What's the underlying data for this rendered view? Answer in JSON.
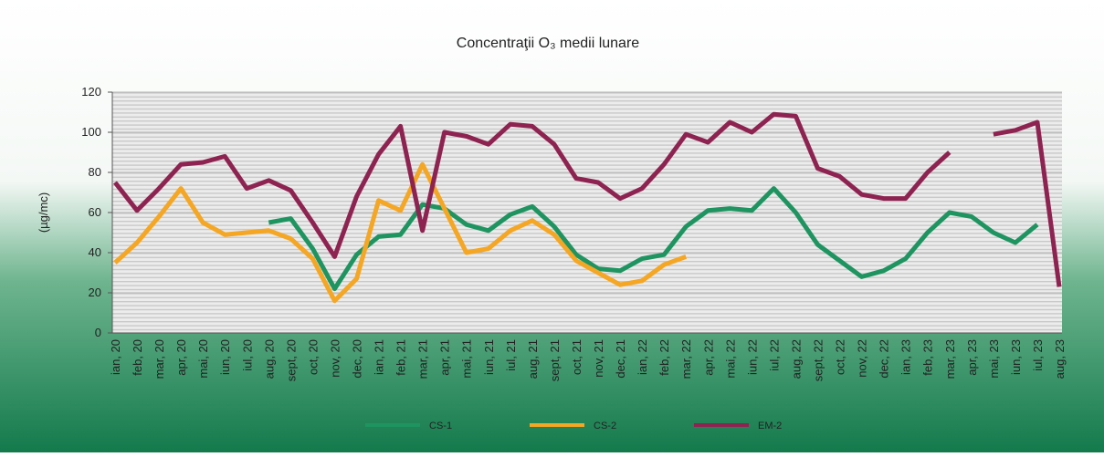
{
  "chart_data": {
    "type": "line",
    "title": "Concentraţii O₃ medii lunare",
    "y_label": "(µg/mc)",
    "categories": [
      "ian, 20",
      "feb, 20",
      "mar, 20",
      "apr, 20",
      "mai, 20",
      "iun, 20",
      "iul, 20",
      "aug, 20",
      "sept, 20",
      "oct, 20",
      "nov, 20",
      "dec, 20",
      "ian, 21",
      "feb, 21",
      "mar, 21",
      "apr, 21",
      "mai, 21",
      "iun, 21",
      "iul, 21",
      "aug, 21",
      "sept, 21",
      "oct, 21",
      "nov, 21",
      "dec, 21",
      "ian, 22",
      "feb, 22",
      "mar, 22",
      "apr, 22",
      "mai, 22",
      "iun, 22",
      "iul, 22",
      "aug, 22",
      "sept, 22",
      "oct, 22",
      "nov, 22",
      "dec, 22",
      "ian, 23",
      "feb, 23",
      "mar, 23",
      "apr, 23",
      "mai, 23",
      "iun, 23",
      "iul, 23",
      "aug, 23"
    ],
    "series": [
      {
        "name": "CS-1",
        "color": "#1e9460",
        "values": [
          null,
          null,
          null,
          null,
          null,
          null,
          null,
          55,
          57,
          42,
          22,
          39,
          48,
          49,
          64,
          62,
          54,
          51,
          59,
          63,
          53,
          39,
          32,
          31,
          37,
          39,
          53,
          61,
          62,
          61,
          72,
          60,
          44,
          36,
          28,
          31,
          37,
          50,
          60,
          58,
          50,
          45,
          54,
          null
        ]
      },
      {
        "name": "CS-2",
        "color": "#f5a623",
        "values": [
          35,
          45,
          58,
          72,
          55,
          49,
          50,
          51,
          47,
          37,
          16,
          27,
          66,
          61,
          84,
          62,
          40,
          42,
          51,
          56,
          49,
          36,
          30,
          24,
          26,
          34,
          38,
          null,
          null,
          null,
          null,
          null,
          null,
          null,
          null,
          null,
          null,
          null,
          null,
          null,
          null,
          null,
          null,
          null
        ]
      },
      {
        "name": "EM-2",
        "color": "#8e2351",
        "values": [
          75,
          61,
          72,
          84,
          85,
          88,
          72,
          76,
          71,
          55,
          38,
          68,
          89,
          103,
          51,
          100,
          98,
          94,
          104,
          103,
          94,
          77,
          75,
          67,
          72,
          84,
          99,
          95,
          105,
          100,
          109,
          108,
          82,
          78,
          69,
          67,
          67,
          80,
          90,
          null,
          99,
          101,
          105,
          23
        ]
      }
    ],
    "ylim": [
      0,
      120
    ],
    "yticks": [
      0,
      20,
      40,
      60,
      80,
      100,
      120
    ],
    "grid": true
  }
}
